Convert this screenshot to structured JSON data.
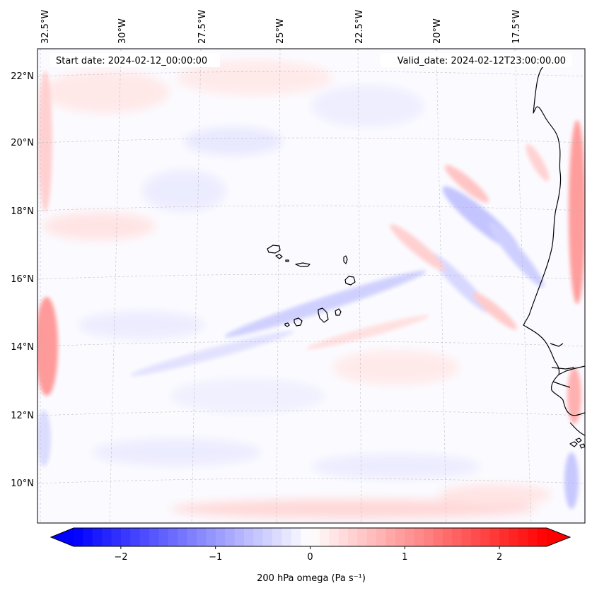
{
  "map": {
    "start_date": "Start date: 2024-02-12_00:00:00",
    "valid_date": "Valid_date: 2024-02-12T23:00:00.00",
    "longitude_labels": [
      "32.5°W",
      "30°W",
      "27.5°W",
      "25°W",
      "22.5°W",
      "20°W",
      "17.5°W"
    ],
    "latitude_labels": [
      "22°N",
      "20°N",
      "18°N",
      "16°N",
      "14°N",
      "12°N",
      "10°N"
    ],
    "coastline_color": "#000000",
    "gridline_color": "#b0b0b0"
  },
  "colorbar": {
    "label": "200 hPa omega (Pa s⁻¹)",
    "ticks": [
      "−2",
      "−1",
      "0",
      "1",
      "2"
    ],
    "tick_values": [
      -2,
      -1,
      0,
      1,
      2
    ],
    "range": [
      -2.5,
      2.5
    ],
    "cmap": "bwr",
    "low_color": "#0000ff",
    "mid_color": "#ffffff",
    "high_color": "#ff0000"
  }
}
